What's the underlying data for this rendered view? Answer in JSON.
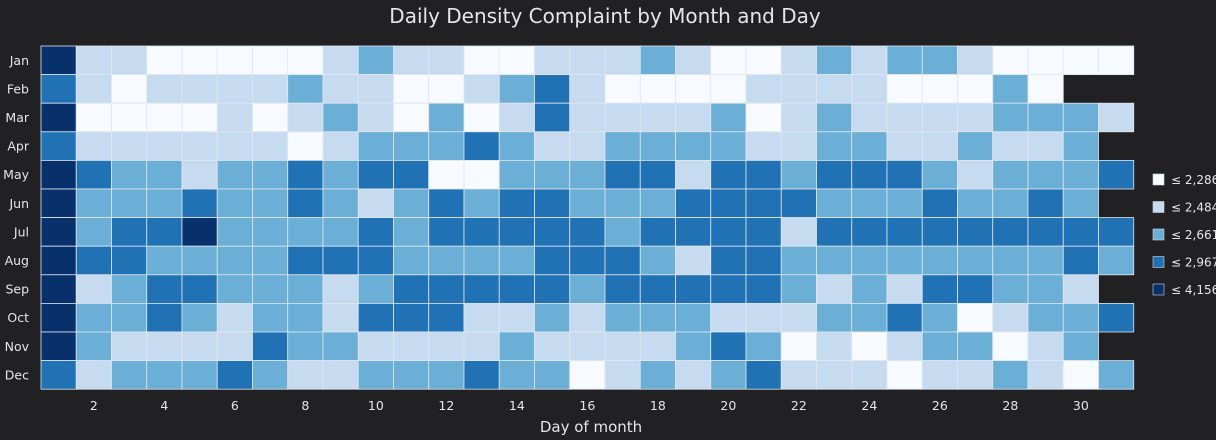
{
  "chart_data": {
    "type": "heatmap",
    "title": "Daily Density Complaint by Month and Day",
    "xlabel": "Day of month",
    "ylabel": "",
    "x_tick_labels": [
      "2",
      "4",
      "6",
      "8",
      "10",
      "12",
      "14",
      "16",
      "18",
      "20",
      "22",
      "24",
      "26",
      "28",
      "30"
    ],
    "months": [
      "Jan",
      "Feb",
      "Mar",
      "Apr",
      "May",
      "Jun",
      "Jul",
      "Aug",
      "Sep",
      "Oct",
      "Nov",
      "Dec"
    ],
    "days_in_month": [
      31,
      29,
      31,
      30,
      31,
      30,
      31,
      31,
      30,
      31,
      30,
      31
    ],
    "legend": [
      {
        "label": "≤ 2,286",
        "color": "#f7fbff"
      },
      {
        "label": "≤ 2,484",
        "color": "#c6dbef"
      },
      {
        "label": "≤ 2,661",
        "color": "#6baed6"
      },
      {
        "label": "≤ 2,967",
        "color": "#2171b5"
      },
      {
        "label": "≤ 4,156",
        "color": "#08306b"
      }
    ],
    "bin_levels_note": "values are color bin index 0-4 matching legend order",
    "values": [
      [
        4,
        1,
        1,
        0,
        0,
        0,
        0,
        0,
        1,
        2,
        1,
        1,
        0,
        0,
        1,
        1,
        1,
        2,
        1,
        0,
        0,
        1,
        2,
        1,
        2,
        2,
        1,
        0,
        0,
        0,
        0
      ],
      [
        3,
        1,
        0,
        1,
        1,
        1,
        1,
        2,
        1,
        1,
        0,
        0,
        1,
        2,
        3,
        1,
        0,
        0,
        0,
        0,
        1,
        1,
        1,
        1,
        0,
        0,
        0,
        2,
        0
      ],
      [
        4,
        0,
        0,
        0,
        0,
        1,
        0,
        1,
        2,
        1,
        0,
        2,
        0,
        1,
        3,
        1,
        1,
        1,
        1,
        2,
        0,
        1,
        2,
        1,
        1,
        1,
        1,
        2,
        2,
        2,
        1
      ],
      [
        3,
        1,
        1,
        1,
        1,
        1,
        1,
        0,
        1,
        2,
        2,
        2,
        3,
        2,
        1,
        1,
        2,
        2,
        2,
        2,
        1,
        1,
        2,
        2,
        1,
        1,
        2,
        1,
        1,
        2
      ],
      [
        4,
        3,
        2,
        2,
        1,
        2,
        2,
        3,
        2,
        3,
        3,
        0,
        0,
        2,
        2,
        2,
        3,
        3,
        1,
        3,
        3,
        2,
        3,
        3,
        3,
        2,
        1,
        2,
        2,
        2,
        3
      ],
      [
        4,
        2,
        2,
        2,
        3,
        2,
        2,
        3,
        2,
        1,
        2,
        3,
        2,
        3,
        3,
        2,
        2,
        2,
        3,
        3,
        3,
        3,
        2,
        2,
        2,
        3,
        2,
        2,
        3,
        2
      ],
      [
        4,
        2,
        3,
        3,
        4,
        2,
        2,
        2,
        2,
        3,
        2,
        3,
        3,
        3,
        3,
        3,
        2,
        3,
        3,
        3,
        3,
        1,
        3,
        3,
        3,
        3,
        3,
        3,
        3,
        3,
        3
      ],
      [
        4,
        3,
        3,
        2,
        2,
        2,
        2,
        3,
        3,
        3,
        2,
        2,
        2,
        2,
        3,
        3,
        3,
        2,
        1,
        3,
        3,
        2,
        2,
        2,
        2,
        2,
        2,
        2,
        2,
        3,
        2
      ],
      [
        4,
        1,
        2,
        3,
        3,
        2,
        2,
        2,
        1,
        2,
        3,
        3,
        3,
        3,
        3,
        2,
        3,
        3,
        3,
        3,
        3,
        2,
        1,
        2,
        1,
        3,
        3,
        2,
        2,
        1
      ],
      [
        4,
        2,
        2,
        3,
        2,
        1,
        2,
        2,
        1,
        3,
        3,
        3,
        1,
        1,
        2,
        1,
        2,
        2,
        2,
        1,
        1,
        1,
        2,
        2,
        3,
        2,
        0,
        1,
        2,
        2,
        3
      ],
      [
        4,
        2,
        1,
        1,
        1,
        1,
        3,
        2,
        2,
        1,
        1,
        1,
        1,
        2,
        1,
        1,
        1,
        1,
        2,
        3,
        2,
        0,
        1,
        0,
        1,
        2,
        2,
        0,
        1,
        2
      ],
      [
        3,
        1,
        2,
        2,
        2,
        3,
        2,
        1,
        1,
        2,
        2,
        2,
        3,
        2,
        2,
        0,
        1,
        2,
        1,
        2,
        3,
        1,
        1,
        1,
        0,
        1,
        1,
        2,
        1,
        0,
        2
      ]
    ]
  }
}
